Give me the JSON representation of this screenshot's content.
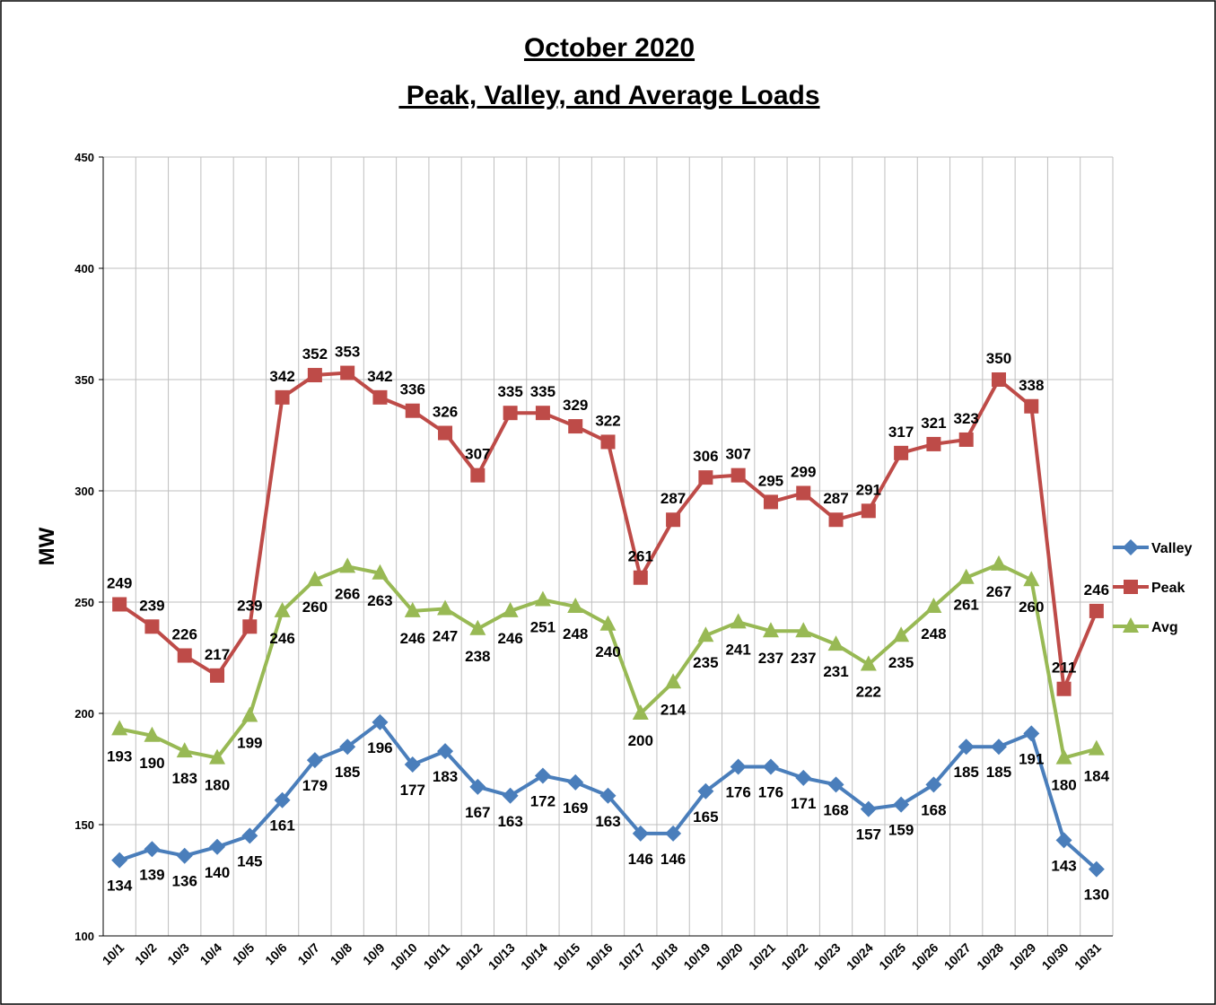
{
  "chart_data": {
    "type": "line",
    "title": "October 2020",
    "subtitle": " Peak, Valley, and Average Loads",
    "y_label": "MW",
    "categories": [
      "10/1",
      "10/2",
      "10/3",
      "10/4",
      "10/5",
      "10/6",
      "10/7",
      "10/8",
      "10/9",
      "10/10",
      "10/11",
      "10/12",
      "10/13",
      "10/14",
      "10/15",
      "10/16",
      "10/17",
      "10/18",
      "10/19",
      "10/20",
      "10/21",
      "10/22",
      "10/23",
      "10/24",
      "10/25",
      "10/26",
      "10/27",
      "10/28",
      "10/29",
      "10/30",
      "10/31"
    ],
    "series": [
      {
        "name": "Valley",
        "color": "#4a7ebb",
        "marker": "diamond",
        "values": [
          134,
          139,
          136,
          140,
          145,
          161,
          179,
          185,
          196,
          177,
          183,
          167,
          163,
          172,
          169,
          163,
          146,
          146,
          165,
          176,
          176,
          171,
          168,
          157,
          159,
          168,
          185,
          185,
          191,
          143,
          130
        ]
      },
      {
        "name": "Peak",
        "color": "#be4b48",
        "marker": "square",
        "values": [
          249,
          239,
          226,
          217,
          239,
          342,
          352,
          353,
          342,
          336,
          326,
          307,
          335,
          335,
          329,
          322,
          261,
          287,
          306,
          307,
          295,
          299,
          287,
          291,
          317,
          321,
          323,
          350,
          338,
          211,
          246
        ]
      },
      {
        "name": "Avg",
        "color": "#98b954",
        "marker": "triangle",
        "values": [
          193,
          190,
          183,
          180,
          199,
          246,
          260,
          266,
          263,
          246,
          247,
          238,
          246,
          251,
          248,
          240,
          200,
          214,
          235,
          241,
          237,
          237,
          231,
          222,
          235,
          248,
          261,
          267,
          260,
          180,
          184
        ]
      }
    ],
    "ylim": [
      100,
      450
    ],
    "yticks": [
      100,
      150,
      200,
      250,
      300,
      350,
      400,
      450
    ],
    "grid": true,
    "legend": "right"
  }
}
